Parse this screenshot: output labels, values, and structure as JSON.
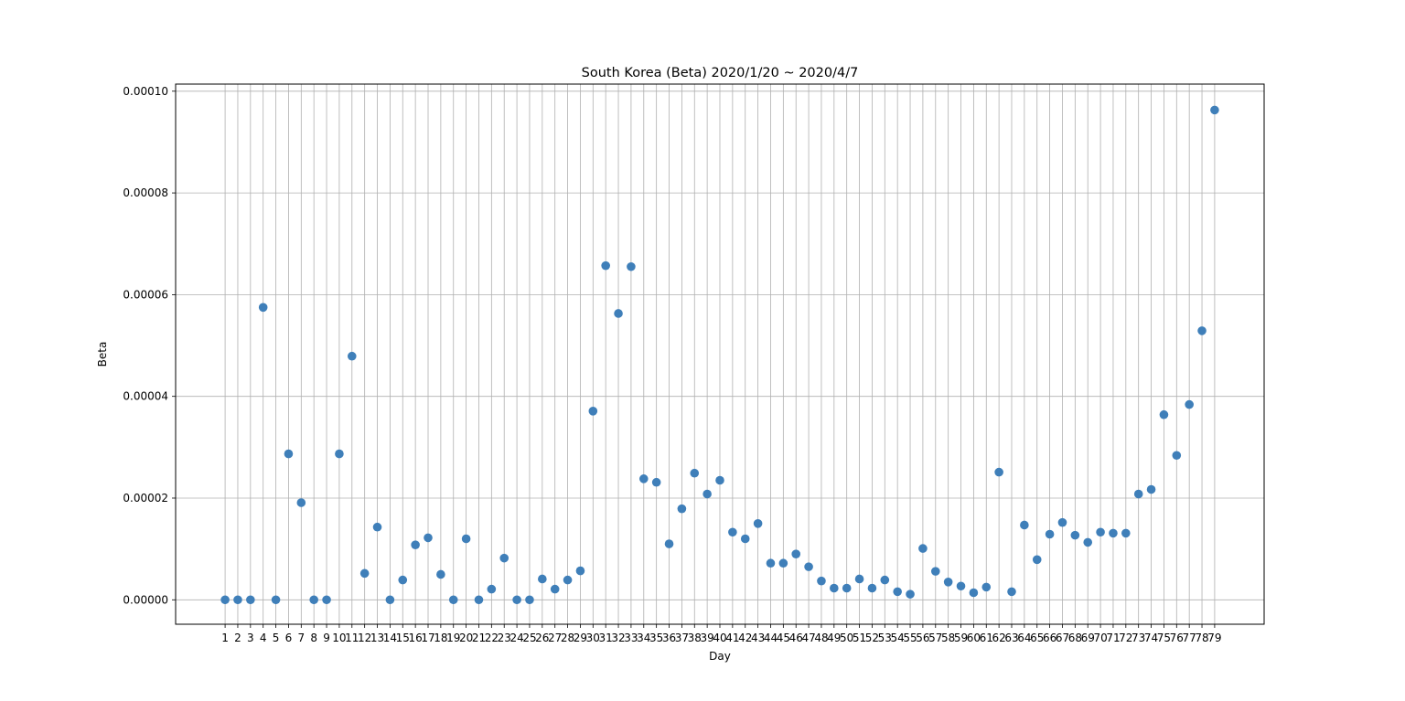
{
  "chart_data": {
    "type": "scatter",
    "title": "South Korea (Beta) 2020/1/20 ~ 2020/4/7",
    "xlabel": "Day",
    "ylabel": "Beta",
    "grid": true,
    "xlim": [
      -2.9,
      82.9
    ],
    "ylim": [
      -4.8e-06,
      0.0001014
    ],
    "x_ticks": [
      1,
      2,
      3,
      4,
      5,
      6,
      7,
      8,
      9,
      10,
      11,
      12,
      13,
      14,
      15,
      16,
      17,
      18,
      19,
      20,
      21,
      22,
      23,
      24,
      25,
      26,
      27,
      28,
      29,
      30,
      31,
      32,
      33,
      34,
      35,
      36,
      37,
      38,
      39,
      40,
      41,
      42,
      43,
      44,
      45,
      46,
      47,
      48,
      49,
      50,
      51,
      52,
      53,
      54,
      55,
      56,
      57,
      58,
      59,
      60,
      61,
      62,
      63,
      64,
      65,
      66,
      67,
      68,
      69,
      70,
      71,
      72,
      73,
      74,
      75,
      76,
      77,
      78,
      79
    ],
    "y_ticks": [
      "0.00000",
      "0.00002",
      "0.00004",
      "0.00006",
      "0.00008",
      "0.00010"
    ],
    "y_tick_values": [
      0,
      2e-05,
      4e-05,
      6e-05,
      8e-05,
      0.0001
    ],
    "series": [
      {
        "color": "#3f7fb9",
        "x": [
          1,
          2,
          3,
          4,
          5,
          6,
          7,
          8,
          9,
          10,
          11,
          12,
          13,
          14,
          15,
          16,
          17,
          18,
          19,
          20,
          21,
          22,
          23,
          24,
          25,
          26,
          27,
          28,
          29,
          30,
          31,
          32,
          33,
          34,
          35,
          36,
          37,
          38,
          39,
          40,
          41,
          42,
          43,
          44,
          45,
          46,
          47,
          48,
          49,
          50,
          51,
          52,
          53,
          54,
          55,
          56,
          57,
          58,
          59,
          60,
          61,
          62,
          63,
          64,
          65,
          66,
          67,
          68,
          69,
          70,
          71,
          72,
          73,
          74,
          75,
          76,
          77,
          78,
          79
        ],
        "y": [
          0,
          0,
          0,
          5.75e-05,
          0,
          2.87e-05,
          1.91e-05,
          0,
          0,
          2.87e-05,
          4.79e-05,
          5.2e-06,
          1.43e-05,
          0,
          3.9e-06,
          1.08e-05,
          1.22e-05,
          5e-06,
          0,
          1.2e-05,
          0,
          2.1e-06,
          8.2e-06,
          0,
          0,
          4.1e-06,
          2.1e-06,
          3.9e-06,
          5.7e-06,
          3.71e-05,
          6.57e-05,
          5.63e-05,
          6.55e-05,
          2.38e-05,
          2.31e-05,
          1.1e-05,
          1.79e-05,
          2.49e-05,
          2.08e-05,
          2.35e-05,
          1.33e-05,
          1.2e-05,
          1.5e-05,
          7.2e-06,
          7.2e-06,
          9e-06,
          6.5e-06,
          3.7e-06,
          2.3e-06,
          2.3e-06,
          4.1e-06,
          2.3e-06,
          3.9e-06,
          1.6e-06,
          1.1e-06,
          1.01e-05,
          5.6e-06,
          3.5e-06,
          2.7e-06,
          1.4e-06,
          2.5e-06,
          2.51e-05,
          1.6e-06,
          1.47e-05,
          7.9e-06,
          1.29e-05,
          1.52e-05,
          1.27e-05,
          1.13e-05,
          1.33e-05,
          1.31e-05,
          1.31e-05,
          2.08e-05,
          2.17e-05,
          3.64e-05,
          2.84e-05,
          3.84e-05,
          5.29e-05,
          9.63e-05
        ]
      }
    ]
  }
}
